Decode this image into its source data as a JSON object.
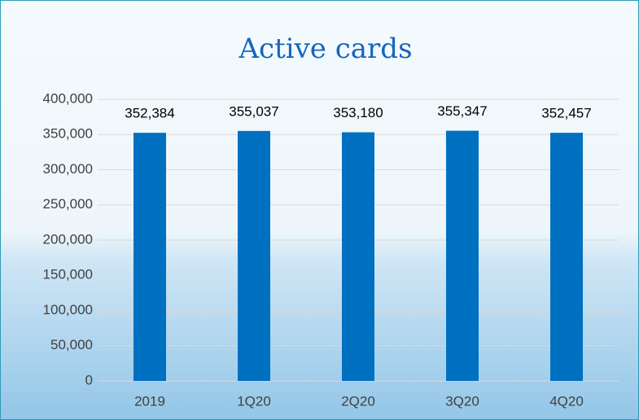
{
  "chart_data": {
    "type": "bar",
    "title": "Active cards",
    "categories": [
      "2019",
      "1Q20",
      "2Q20",
      "3Q20",
      "4Q20"
    ],
    "values": [
      352384,
      355037,
      353180,
      355347,
      352457
    ],
    "value_labels": [
      "352,384",
      "355,037",
      "353,180",
      "355,347",
      "352,457"
    ],
    "color": "#0070c0",
    "ylim": [
      0,
      400000
    ],
    "yticks": [
      0,
      {
        "value": 50000,
        "label": "50,000"
      },
      {
        "value": 100000,
        "label": "100,000"
      },
      {
        "value": 150000,
        "label": "150,000"
      },
      {
        "value": 200000,
        "label": "200,000"
      },
      {
        "value": 250000,
        "label": "250,000"
      },
      {
        "value": 300000,
        "label": "300,000"
      },
      {
        "value": 350000,
        "label": "350,000"
      },
      {
        "value": 400000,
        "label": "400,000"
      }
    ],
    "grid": true
  }
}
